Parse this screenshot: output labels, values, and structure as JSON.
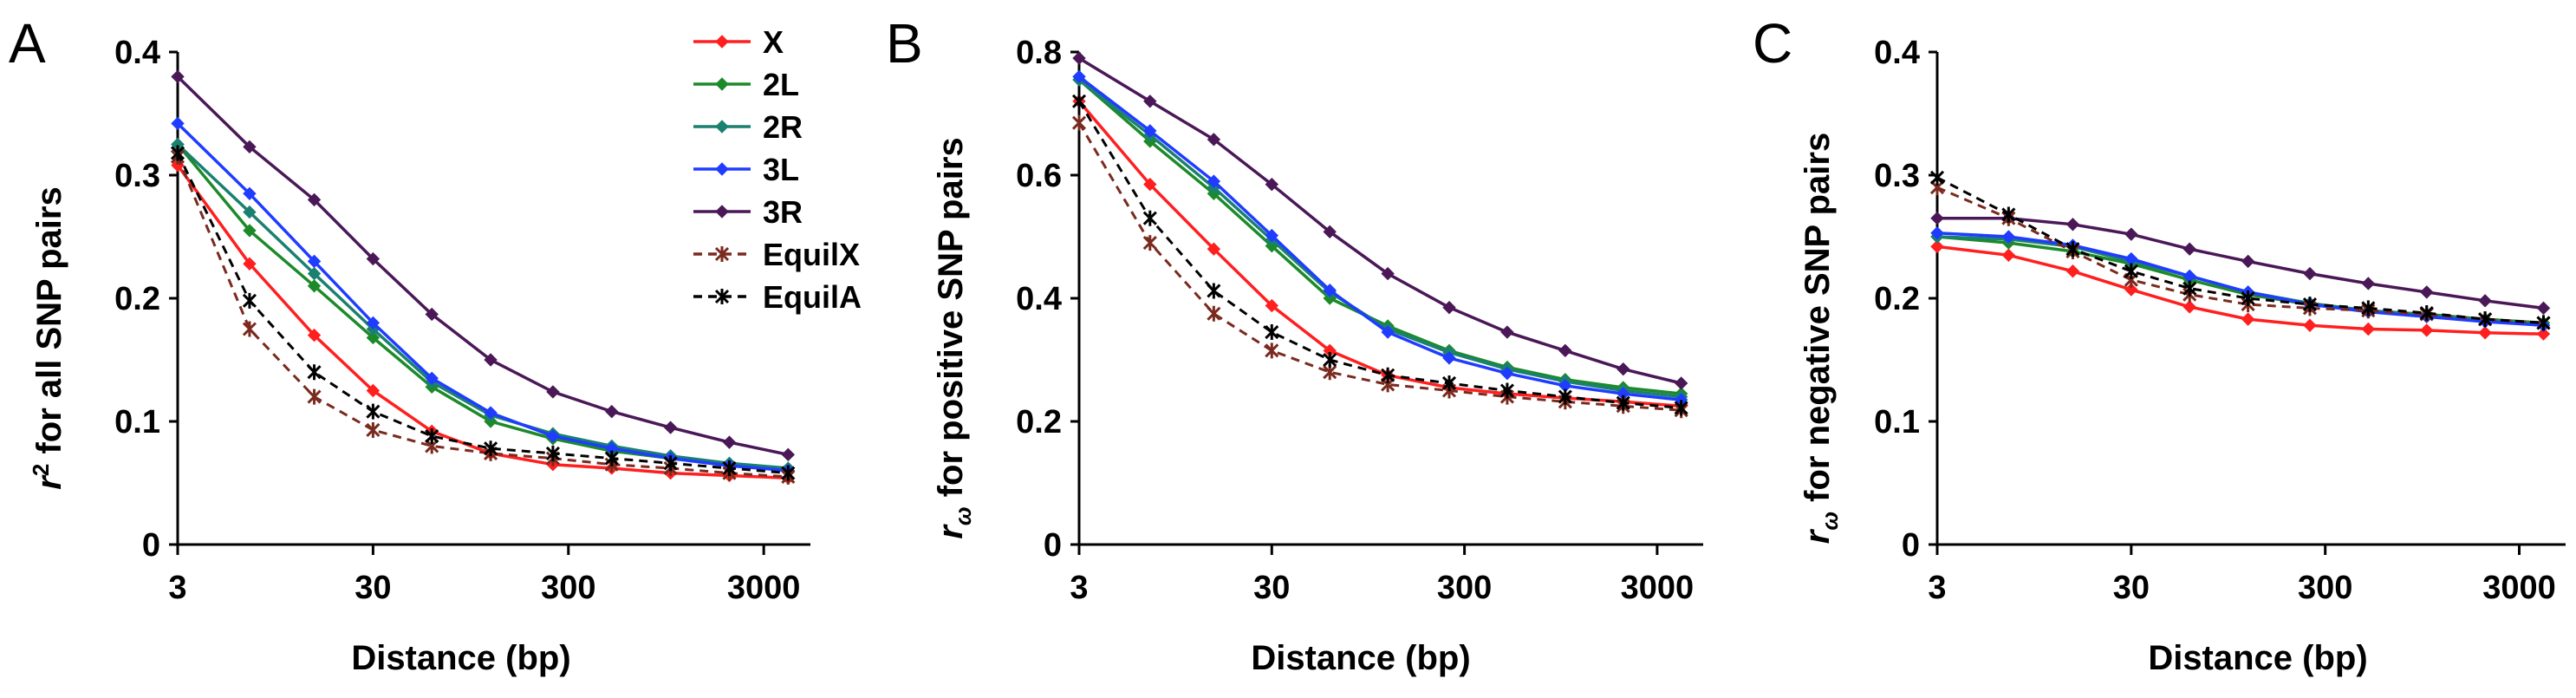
{
  "panels": [
    "A",
    "B",
    "C"
  ],
  "legend": [
    {
      "name": "X",
      "color": "#ff1f1f",
      "marker": "diamond",
      "dash": false
    },
    {
      "name": "2L",
      "color": "#1d8a2a",
      "marker": "diamond",
      "dash": false
    },
    {
      "name": "2R",
      "color": "#1a8070",
      "marker": "diamond",
      "dash": false
    },
    {
      "name": "3L",
      "color": "#1f3cff",
      "marker": "diamond",
      "dash": false
    },
    {
      "name": "3R",
      "color": "#4a1857",
      "marker": "diamond",
      "dash": false
    },
    {
      "name": "EquilX",
      "color": "#7a2a1e",
      "marker": "x-star",
      "dash": true
    },
    {
      "name": "EquilA",
      "color": "#000000",
      "marker": "x-star",
      "dash": true
    }
  ],
  "chart_data": [
    {
      "type": "line",
      "panel": "A",
      "ylabel_main": "r",
      "ylabel_sup": "2",
      "ylabel_rest": " for all SNP pairs",
      "xlabel": "Distance (bp)",
      "xscale": "log",
      "xticks": [
        "3",
        "30",
        "300",
        "3000"
      ],
      "yticks": [
        "0",
        "0.1",
        "0.2",
        "0.3",
        "0.4"
      ],
      "ylim": [
        0,
        0.4
      ],
      "x": [
        3,
        7,
        15,
        30,
        60,
        120,
        250,
        500,
        1000,
        2000,
        4000
      ],
      "series": [
        {
          "name": "X",
          "values": [
            0.308,
            0.228,
            0.17,
            0.125,
            0.092,
            0.074,
            0.065,
            0.062,
            0.058,
            0.056,
            0.054
          ]
        },
        {
          "name": "2L",
          "values": [
            0.325,
            0.255,
            0.21,
            0.168,
            0.128,
            0.1,
            0.086,
            0.076,
            0.07,
            0.065,
            0.06
          ]
        },
        {
          "name": "2R",
          "values": [
            0.325,
            0.27,
            0.22,
            0.175,
            0.132,
            0.105,
            0.09,
            0.08,
            0.072,
            0.066,
            0.062
          ]
        },
        {
          "name": "3L",
          "values": [
            0.342,
            0.285,
            0.23,
            0.18,
            0.135,
            0.107,
            0.088,
            0.078,
            0.07,
            0.064,
            0.06
          ]
        },
        {
          "name": "3R",
          "values": [
            0.38,
            0.323,
            0.28,
            0.232,
            0.187,
            0.15,
            0.124,
            0.108,
            0.095,
            0.083,
            0.073
          ]
        },
        {
          "name": "EquilX",
          "values": [
            0.315,
            0.175,
            0.12,
            0.093,
            0.08,
            0.074,
            0.07,
            0.065,
            0.062,
            0.058,
            0.055
          ]
        },
        {
          "name": "EquilA",
          "values": [
            0.318,
            0.198,
            0.14,
            0.108,
            0.088,
            0.078,
            0.074,
            0.07,
            0.066,
            0.062,
            0.058
          ]
        }
      ]
    },
    {
      "type": "line",
      "panel": "B",
      "ylabel_main": "r",
      "ylabel_sub": "ω",
      "ylabel_rest": " for positive SNP pairs",
      "xlabel": "Distance (bp)",
      "xscale": "log",
      "xticks": [
        "3",
        "30",
        "300",
        "3000"
      ],
      "yticks": [
        "0",
        "0.2",
        "0.4",
        "0.6",
        "0.8"
      ],
      "ylim": [
        0,
        0.8
      ],
      "x": [
        3,
        7,
        15,
        30,
        60,
        120,
        250,
        500,
        1000,
        2000,
        4000
      ],
      "series": [
        {
          "name": "X",
          "values": [
            0.72,
            0.585,
            0.48,
            0.388,
            0.315,
            0.275,
            0.255,
            0.245,
            0.238,
            0.232,
            0.225
          ]
        },
        {
          "name": "2L",
          "values": [
            0.755,
            0.655,
            0.57,
            0.485,
            0.4,
            0.355,
            0.315,
            0.288,
            0.268,
            0.255,
            0.245
          ]
        },
        {
          "name": "2R",
          "values": [
            0.755,
            0.665,
            0.58,
            0.495,
            0.41,
            0.35,
            0.312,
            0.285,
            0.265,
            0.25,
            0.24
          ]
        },
        {
          "name": "3L",
          "values": [
            0.76,
            0.672,
            0.59,
            0.502,
            0.413,
            0.345,
            0.303,
            0.278,
            0.258,
            0.245,
            0.235
          ]
        },
        {
          "name": "3R",
          "values": [
            0.79,
            0.72,
            0.658,
            0.585,
            0.508,
            0.44,
            0.385,
            0.345,
            0.315,
            0.285,
            0.262
          ]
        },
        {
          "name": "EquilX",
          "values": [
            0.685,
            0.49,
            0.375,
            0.315,
            0.28,
            0.26,
            0.25,
            0.24,
            0.232,
            0.225,
            0.218
          ]
        },
        {
          "name": "EquilA",
          "values": [
            0.72,
            0.53,
            0.412,
            0.345,
            0.3,
            0.275,
            0.262,
            0.25,
            0.24,
            0.23,
            0.222
          ]
        }
      ]
    },
    {
      "type": "line",
      "panel": "C",
      "ylabel_main": "r",
      "ylabel_sub": "ω",
      "ylabel_rest": " for negative SNP pairs",
      "xlabel": "Distance (bp)",
      "xscale": "log",
      "xticks": [
        "3",
        "30",
        "300",
        "3000"
      ],
      "yticks": [
        "0",
        "0.1",
        "0.2",
        "0.3",
        "0.4"
      ],
      "ylim": [
        0,
        0.4
      ],
      "x": [
        3,
        7,
        15,
        30,
        60,
        120,
        250,
        500,
        1000,
        2000,
        4000
      ],
      "series": [
        {
          "name": "X",
          "values": [
            0.242,
            0.235,
            0.222,
            0.207,
            0.193,
            0.183,
            0.178,
            0.175,
            0.174,
            0.172,
            0.171
          ]
        },
        {
          "name": "2L",
          "values": [
            0.25,
            0.245,
            0.238,
            0.228,
            0.215,
            0.203,
            0.195,
            0.19,
            0.187,
            0.183,
            0.18
          ]
        },
        {
          "name": "2R",
          "values": [
            0.25,
            0.248,
            0.242,
            0.23,
            0.218,
            0.205,
            0.196,
            0.19,
            0.186,
            0.182,
            0.178
          ]
        },
        {
          "name": "3L",
          "values": [
            0.253,
            0.25,
            0.243,
            0.232,
            0.218,
            0.205,
            0.195,
            0.189,
            0.185,
            0.181,
            0.178
          ]
        },
        {
          "name": "3R",
          "values": [
            0.265,
            0.265,
            0.26,
            0.252,
            0.24,
            0.23,
            0.22,
            0.212,
            0.205,
            0.198,
            0.192
          ]
        },
        {
          "name": "EquilX",
          "values": [
            0.29,
            0.265,
            0.238,
            0.215,
            0.203,
            0.195,
            0.192,
            0.19,
            0.187,
            0.183,
            0.18
          ]
        },
        {
          "name": "EquilA",
          "values": [
            0.298,
            0.268,
            0.24,
            0.222,
            0.208,
            0.2,
            0.195,
            0.192,
            0.188,
            0.183,
            0.18
          ]
        }
      ]
    }
  ]
}
